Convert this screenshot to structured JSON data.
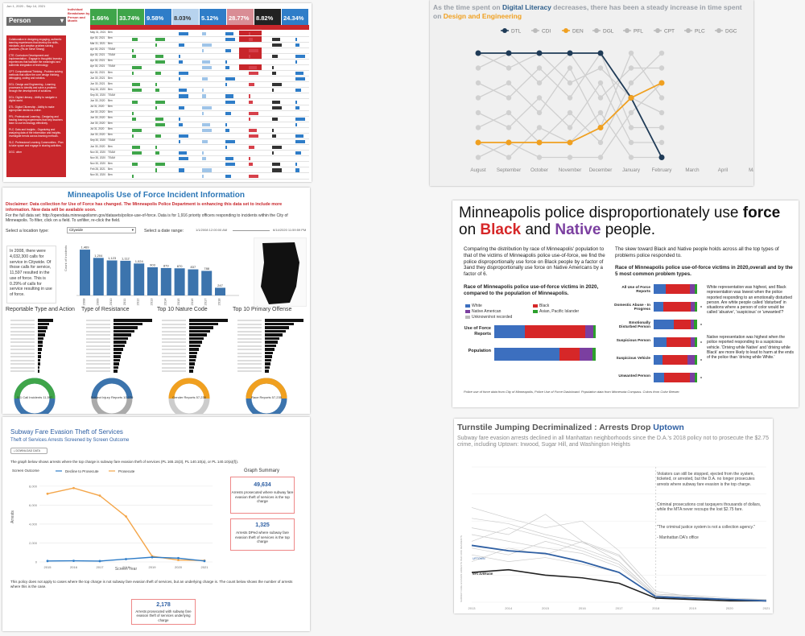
{
  "p1": {
    "header_small": "Jun 1, 2020 - Sep 14, 2021",
    "dropdown": "Person",
    "title_line1": "Individual",
    "title_line2": "Breakdown by",
    "title_line3": "Person and Month",
    "kpis": [
      {
        "value": "1.66%",
        "bg": "#3fa54a"
      },
      {
        "value": "33.74%",
        "bg": "#3fa54a"
      },
      {
        "value": "9.58%",
        "bg": "#2f7dc8"
      },
      {
        "value": "8.03%",
        "bg": "#b7d3ee"
      },
      {
        "value": "5.12%",
        "bg": "#2f7dc8"
      },
      {
        "value": "28.77%",
        "bg": "#d98d95"
      },
      {
        "value": "8.82%",
        "bg": "#222222"
      },
      {
        "value": "24.34%",
        "bg": "#2f7dc8"
      }
    ],
    "notes": [
      "Collaboration in designing engaging, authentic learning experiences that develop the skills, mindsets, and creative problem solving practices. (Rs de Steve Strang)",
      "CTE: Curriculum Development and Implementation - Engage in thoughtful learning experiences that facilitate the meaningful and authentic integration of technology.",
      "CPT: Computational Thinking - Problem solving methods that utilize the core design thinking, debugging, coding and robotics.",
      "DGL: Design and Engineering - Learning processes to identify and solve a problem through the development of solutions.",
      "DGL: Digital Literacy - Ability to navigate a digital world.",
      "DTL: Digital Citizenship - Ability to make appropriate decisions online.",
      "PFL: Professional Learning - Designing and leading learning experiences that help teachers learn to use technology effectively.",
      "PLC: Data and Insights - Organizing and analyzing data of the information and insights. Investigate trends across learning methods.",
      "SLC: Professional Learning Communities - Plan to take space and engage in sharing activities.",
      "DGC: other"
    ],
    "dates": [
      "May 31, 2021",
      "Apr 30, 2021",
      "Mar 31, 2021",
      "Apr 30, 2021",
      "Apr 30, 2021",
      "Apr 30, 2021",
      "Apr 30, 2021",
      "Apr 30, 2021",
      "Jun 30, 2021",
      "Jun 30, 2021",
      "Sep 30, 2020",
      "Sep 30, 2020",
      "Jun 30, 2020",
      "Jul 31, 2020",
      "Jun 30, 2020",
      "Jun 30, 2020",
      "Jun 30, 2020",
      "Jul 31, 2020",
      "Jun 30, 2020",
      "Sep 30, 2020",
      "Jun 30, 2020",
      "Nov 30, 2020",
      "Nov 30, 2020",
      "Nov 30, 2020",
      "Feb 28, 2021",
      "Nov 30, 2020"
    ],
    "names": [
      "Ben",
      "Ben",
      "Ben",
      "TEAM",
      "TEAM",
      "Ben",
      "TEAM",
      "Ben",
      "Ben",
      "Ben",
      "Ben",
      "TEAM",
      "Ben",
      "Ben",
      "Ben",
      "Ben",
      "Ben",
      "Ben",
      "Ben",
      "TEAM",
      "Ben",
      "TEAM",
      "TEAM",
      "Ben",
      "Ben",
      "Ben"
    ]
  },
  "p2": {
    "title_pre": "As the time spent on ",
    "title_h1": "Digital Literacy",
    "title_mid": " decreases, there has been a steady increase in time spent on ",
    "title_h2": "Design and Engineering",
    "legend": [
      {
        "name": "DTL",
        "color": "#1f3b57"
      },
      {
        "name": "CDI",
        "color": "#bbbbbb"
      },
      {
        "name": "DEN",
        "color": "#f0a020"
      },
      {
        "name": "DGL",
        "color": "#bbbbbb"
      },
      {
        "name": "PFL",
        "color": "#bbbbbb"
      },
      {
        "name": "CPT",
        "color": "#bbbbbb"
      },
      {
        "name": "PLC",
        "color": "#bbbbbb"
      },
      {
        "name": "DGC",
        "color": "#bbbbbb"
      }
    ],
    "months": [
      "August",
      "September",
      "October",
      "November",
      "December",
      "January",
      "February",
      "March",
      "April",
      "May"
    ]
  },
  "p3": {
    "title": "Minneapolis Use of Force Incident Information",
    "disclaimer": "Disclaimer: Data collection for Use of Force has changed. The Minneapolis Police Department is enhancing this data set to include more information. New data will be available soon.",
    "fulldata": "For the full data set: http://opendata.minneapolismn.gov/datasets/police-use-of-force. Data is for 1,916 priority officers responding to incidents within the City of Minneapolis. To filter, click on a field. To unfilter, re-click the field.",
    "select_loc": "Select a location type:",
    "select_loc_value": "Citywide",
    "select_date": "Select a date range:",
    "date_from": "1/1/2008 12:00:00 AM",
    "date_to": "6/14/2020 11:59:59 PM",
    "callout": "In 2008, there were 4,032,300 calls for service in Citywide. Of those calls for service, 11,597 resulted in the use of force. This is 0.29% of calls for service resulting in use of force.",
    "years": [
      "2008",
      "2009",
      "2010",
      "2011",
      "2012",
      "2013",
      "2014",
      "2015",
      "2016",
      "2017",
      "2018",
      "2019",
      "2020"
    ],
    "bar_values": [
      1469,
      1204,
      1123,
      1112,
      1024,
      903,
      879,
      870,
      837,
      788,
      247
    ],
    "sect_titles": [
      "Reportable Type and Action",
      "Type of Resistance",
      "Top 10 Nature Code",
      "Top 10 Primary Offense"
    ],
    "donut_labels": [
      "311 Call Incidents 11,597",
      "Subject Injury Reports 10,279",
      "Gender Reports 57,235",
      "Race Reports 57,235"
    ]
  },
  "p4": {
    "title_a": "Minneapolis police disproportionately use ",
    "title_b": "force",
    "title_c": " on ",
    "title_d": "Black",
    "title_e": " and ",
    "title_f": "Native",
    "title_g": " people.",
    "left_para": "Comparing the distribution by race of Minneapolis' population to that of the victims of Minneapolis police use-of-force, we find the police disproportionally use force on Black people by a factor of 3and they disproportionally use force on Native Americans by a factor of 6.",
    "right_para": "The skew toward Black and Native people holds across all the top types of problems police responded to.",
    "left_chart_title": "Race of Minneapolis police use-of-force victims in 2020, compared to the population of Minneapolis.",
    "right_chart_title": "Race of Minneapolis police use-of-force victims in 2020,overall and by the 5 most common problem types.",
    "race_legend": [
      "White",
      "Black",
      "Native American",
      "Asian, Pacific Islander",
      "Unknown/not recorded"
    ],
    "rows_left": [
      "Use of Force Reports",
      "Population"
    ],
    "rows_right": [
      "All Use of Force Reports",
      "Domestic Abuse - In Progress",
      "Emotionally Disturbed Person",
      "Suspicious Person",
      "Suspicious Vehicle",
      "Unwanted Person"
    ],
    "note1": "White representation was highest, and Black representation was lowest when the police reported responding to an emotionally disturbed person. Are white people called 'disturbed' in situations where a person of color would be called 'abusive', 'suspicious' or 'unwanted'?",
    "note2": "Native representation was highest when the police reported responding to a suspicious vehicle. 'Driving while Native' and 'driving while Black' are more likely to lead to harm at the ends of the police than 'driving while White.'",
    "source": "Police use of force data from City of Minneapolis, Police Use of Force Dashboard. Population data from Minnesota Compass. Colors from Color Brewer."
  },
  "p5": {
    "title": "Subway Fare Evasion Theft of Services",
    "subtitle": "Theft of Services Arrests Screened by Screen Outcome",
    "download": "DOWNLOAD DATA",
    "desc": "The graph below shows arrests where the top charge is subway fare evasion theft of services (PL 165.15(3), PL 140.10(a), or PL 140.10(a)(f)).",
    "legend_title": "Screen Outcome",
    "legend": [
      "Decline to Prosecute",
      "Prosecute"
    ],
    "years": [
      "2015",
      "2016",
      "2017",
      "2018",
      "2019",
      "2020",
      "2021"
    ],
    "ylabel": "Arrests",
    "xlabel": "Screen Year",
    "summary_title": "Graph Summary",
    "sum1_val": "49,634",
    "sum1_txt": "Arrests prosecuted where subway fare evasion theft of services is the top charge",
    "sum2_val": "1,325",
    "sum2_txt": "Arrests DPed where subway fare evasion theft of services is the top charge",
    "policy": "This policy does not apply to cases where the top charge is not subway fare evasion theft of services, but an underlying charge is. The count below shows the number of arrests where this is the case.",
    "sum3_val": "2,178",
    "sum3_txt": "Arrests prosecuted with subway fare evasion theft of services underlying charge"
  },
  "p6": {
    "title_a": "Turnstile Jumping Decriminalized : Arrests Drop ",
    "title_b": "Uptown",
    "sub": "Subway fare evasion arrests declined in all Manhattan neighborhoods since the D.A.'s 2018 policy not to prosecute the $2.75 crime, including Uptown: Inwood, Sugar Hill, and Washington Heights",
    "note1": "Violators can still be stopped, ejected from the system, ticketed, or arrested, but the D.A. no longer prosecutes arrests where subway fare evasion is the top charge.",
    "note2": "Criminal prosecutions cost taxpayers thousands of dollars, while the MTA never recoups the lost $2.75 fare.",
    "quote": "\"The criminal justice system is not a collection agency.\"",
    "quote_by": "- Manhattan DA's office",
    "ylabel": "SUBWAY FARE EVASION ARRESTS PER 100K RESIDENTS",
    "lbl1": "NYC AVERAGE",
    "lbl2": "UPTOWN",
    "years": [
      "2013",
      "2014",
      "2015",
      "2016",
      "2017",
      "2018",
      "2019",
      "2020",
      "2021"
    ]
  }
}
